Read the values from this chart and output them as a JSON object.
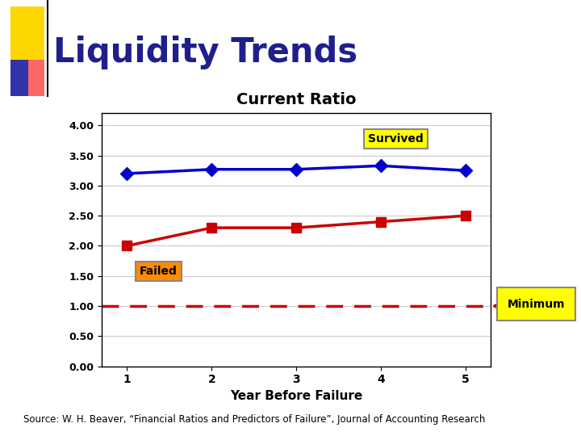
{
  "title": "Liquidity Trends",
  "chart_title": "Current Ratio",
  "xlabel": "Year Before Failure",
  "ylabel": "",
  "x": [
    1,
    2,
    3,
    4,
    5
  ],
  "survived": [
    3.2,
    3.27,
    3.27,
    3.33,
    3.25
  ],
  "failed": [
    2.0,
    2.3,
    2.3,
    2.4,
    2.5
  ],
  "minimum": 1.0,
  "survived_color": "#0000CC",
  "failed_color": "#CC0000",
  "minimum_color": "#CC0000",
  "background_color": "#FFFFFF",
  "slide_bg": "#FFFFFF",
  "title_color": "#1F1F8C",
  "yticks": [
    0.0,
    0.5,
    1.0,
    1.5,
    2.0,
    2.5,
    3.0,
    3.5,
    4.0
  ],
  "ylim": [
    0.0,
    4.2
  ],
  "xlim": [
    0.7,
    5.3
  ],
  "source_text": "Source: W. H. Beaver, “Financial Ratios and Predictors of Failure”, Journal of Accounting Research"
}
